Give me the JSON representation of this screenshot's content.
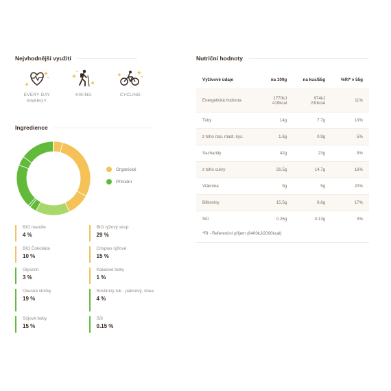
{
  "usage": {
    "title": "Nejvhodnější využití",
    "items": [
      {
        "label_line1": "EVERY DAY",
        "label_line2": "ENERGY",
        "icon": "heart-icon"
      },
      {
        "label_line1": "HIKING",
        "label_line2": "",
        "icon": "hiker-icon"
      },
      {
        "label_line1": "CYCLING",
        "label_line2": "",
        "icon": "bicycle-icon"
      }
    ]
  },
  "ingredients": {
    "title": "Ingredience",
    "legend": [
      {
        "label": "Organické",
        "color": "#f4c257"
      },
      {
        "label": "Přírodní",
        "color": "#62ba3a"
      }
    ],
    "chart_data": {
      "type": "pie",
      "categories": [
        "BIO mandle",
        "BIO rýžový sirup",
        "BIO Čokoláda",
        "Crispies rýžové",
        "Glycerin",
        "Kakaové boby",
        "Ovesné vločky",
        "Rostlinný tuk - palmový, shea",
        "Sójové boby",
        "Sůl"
      ],
      "values": [
        4,
        29,
        10,
        15,
        3,
        1,
        19,
        4,
        15,
        0.15
      ],
      "colors": [
        "#f4c257",
        "#f4c257",
        "#f4c257",
        "#a8d86a",
        "#62ba3a",
        "#62ba3a",
        "#62ba3a",
        "#62ba3a",
        "#62ba3a",
        "#62ba3a"
      ]
    },
    "items": [
      {
        "name": "BIO mandle",
        "value": "4 %",
        "type": "organic"
      },
      {
        "name": "BIO rýžový sirup",
        "value": "29 %",
        "type": "organic"
      },
      {
        "name": "BIO Čokoláda",
        "value": "10 %",
        "type": "organic"
      },
      {
        "name": "Crispies rýžové",
        "value": "15 %",
        "type": "organic"
      },
      {
        "name": "Glycerin",
        "value": "3 %",
        "type": "natural"
      },
      {
        "name": "Kakaové boby",
        "value": "1 %",
        "type": "organic"
      },
      {
        "name": "Ovesné vločky",
        "value": "19 %",
        "type": "natural"
      },
      {
        "name": "Rostlinný tuk - palmový, shea",
        "value": "4 %",
        "type": "natural"
      },
      {
        "name": "Sójové boby",
        "value": "15 %",
        "type": "natural"
      },
      {
        "name": "Sůl",
        "value": "0.15 %",
        "type": "natural"
      }
    ]
  },
  "nutrition": {
    "title": "Nutriční hodnoty",
    "headers": [
      "Výživové údaje",
      "na 100g",
      "na kus/55g",
      "%RI* v 55g"
    ],
    "rows": [
      {
        "name": "Energetická hodnota",
        "per100_line1": "1770kJ",
        "per100_line2": "419kcal",
        "perPiece_line1": "974kJ",
        "perPiece_line2": "230kcal",
        "ri": "11%"
      },
      {
        "name": "Tuky",
        "per100_line1": "14g",
        "per100_line2": "",
        "perPiece_line1": "7.7g",
        "perPiece_line2": "",
        "ri": "13%"
      },
      {
        "name": "z toho nas. mast. kys.",
        "per100_line1": "1.6g",
        "per100_line2": "",
        "perPiece_line1": "0.9g",
        "perPiece_line2": "",
        "ri": "5%"
      },
      {
        "name": "Sacharidy",
        "per100_line1": "42g",
        "per100_line2": "",
        "perPiece_line1": "23g",
        "perPiece_line2": "",
        "ri": "9%"
      },
      {
        "name": "z toho cukry",
        "per100_line1": "26.5g",
        "per100_line2": "",
        "perPiece_line1": "14.7g",
        "perPiece_line2": "",
        "ri": "16%"
      },
      {
        "name": "Vláknina",
        "per100_line1": "9g",
        "per100_line2": "",
        "perPiece_line1": "5g",
        "perPiece_line2": "",
        "ri": "20%"
      },
      {
        "name": "Bílkoviny",
        "per100_line1": "15.5g",
        "per100_line2": "",
        "perPiece_line1": "8.6g",
        "perPiece_line2": "",
        "ri": "17%"
      },
      {
        "name": "Sůl",
        "per100_line1": "0.26g",
        "per100_line2": "",
        "perPiece_line1": "0.13g",
        "perPiece_line2": "",
        "ri": "3%"
      }
    ],
    "footnote": "*RI - Referenční příjem (8400kJ/2000kcal)"
  }
}
